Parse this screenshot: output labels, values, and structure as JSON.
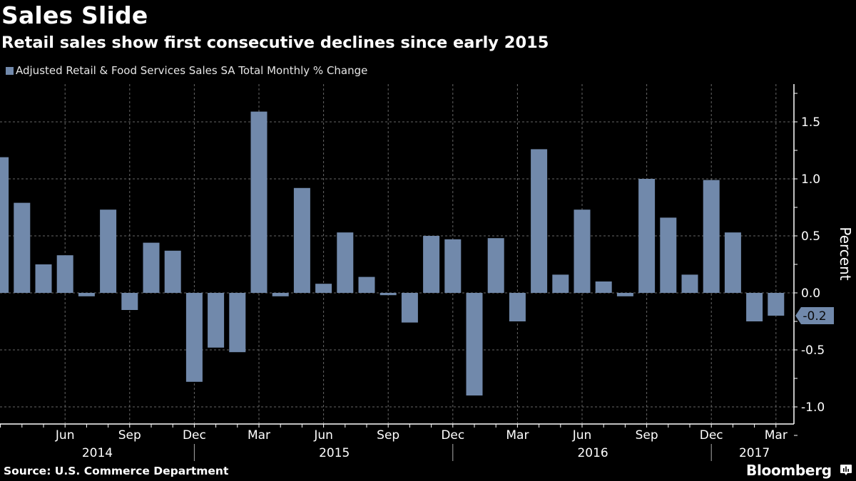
{
  "header": {
    "title": "Sales Slide",
    "subtitle": "Retail sales show first consecutive declines since early 2015"
  },
  "footer": {
    "source": "Source: U.S. Commerce Department",
    "brand": "Bloomberg",
    "brand_icon": "bloomberg-chart-icon"
  },
  "colors": {
    "background": "#000000",
    "bar": "#7189ab",
    "grid": "#666666",
    "axis": "#ffffff",
    "last_value_label_text": "#0a0a0a"
  },
  "chart_data": {
    "type": "bar",
    "title": "Sales Slide",
    "subtitle": "Retail sales show first consecutive declines since early 2015",
    "xlabel": "",
    "ylabel": "Percent",
    "ylim": [
      -1.25,
      1.8
    ],
    "yticks": [
      1.5,
      1.0,
      0.5,
      0.0,
      -0.5,
      -1.0
    ],
    "ytick_labels": [
      "1.5",
      "1.0",
      "0.5",
      "0.0",
      "-0.5",
      "-1.0"
    ],
    "y_axis_side": "right",
    "grid": true,
    "legend": {
      "position": "top-left",
      "entries": [
        "Adjusted Retail & Food Services Sales SA Total Monthly % Change"
      ]
    },
    "categories": [
      "Mar 2014",
      "Apr 2014",
      "May 2014",
      "Jun 2014",
      "Jul 2014",
      "Aug 2014",
      "Sep 2014",
      "Oct 2014",
      "Nov 2014",
      "Dec 2014",
      "Jan 2015",
      "Feb 2015",
      "Mar 2015",
      "Apr 2015",
      "May 2015",
      "Jun 2015",
      "Jul 2015",
      "Aug 2015",
      "Sep 2015",
      "Oct 2015",
      "Nov 2015",
      "Dec 2015",
      "Jan 2016",
      "Feb 2016",
      "Mar 2016",
      "Apr 2016",
      "May 2016",
      "Jun 2016",
      "Jul 2016",
      "Aug 2016",
      "Sep 2016",
      "Oct 2016",
      "Nov 2016",
      "Dec 2016",
      "Jan 2017",
      "Feb 2017",
      "Mar 2017"
    ],
    "series": [
      {
        "name": "Adjusted Retail & Food Services Sales SA Total Monthly % Change",
        "values": [
          1.19,
          0.79,
          0.25,
          0.33,
          -0.03,
          0.73,
          -0.15,
          0.44,
          0.37,
          -0.78,
          -0.48,
          -0.52,
          1.59,
          -0.03,
          0.92,
          0.08,
          0.53,
          0.14,
          -0.02,
          -0.26,
          0.5,
          0.47,
          -0.9,
          0.48,
          -0.25,
          1.26,
          0.16,
          0.73,
          0.1,
          -0.03,
          1.0,
          0.66,
          0.16,
          0.99,
          0.53,
          -0.25,
          -0.2
        ]
      }
    ],
    "x_month_labels": [
      {
        "index": 3,
        "label": "Jun"
      },
      {
        "index": 6,
        "label": "Sep"
      },
      {
        "index": 9,
        "label": "Dec"
      },
      {
        "index": 12,
        "label": "Mar"
      },
      {
        "index": 15,
        "label": "Jun"
      },
      {
        "index": 18,
        "label": "Sep"
      },
      {
        "index": 21,
        "label": "Dec"
      },
      {
        "index": 24,
        "label": "Mar"
      },
      {
        "index": 27,
        "label": "Jun"
      },
      {
        "index": 30,
        "label": "Sep"
      },
      {
        "index": 33,
        "label": "Dec"
      },
      {
        "index": 36,
        "label": "Mar"
      }
    ],
    "x_year_labels": [
      {
        "center_index": 4.5,
        "label": "2014"
      },
      {
        "center_index": 15.5,
        "label": "2015"
      },
      {
        "center_index": 27.5,
        "label": "2016"
      },
      {
        "center_index": 35.0,
        "label": "2017"
      }
    ],
    "year_separators_after_index": [
      9,
      21,
      33
    ],
    "last_value_label": "-0.2"
  }
}
